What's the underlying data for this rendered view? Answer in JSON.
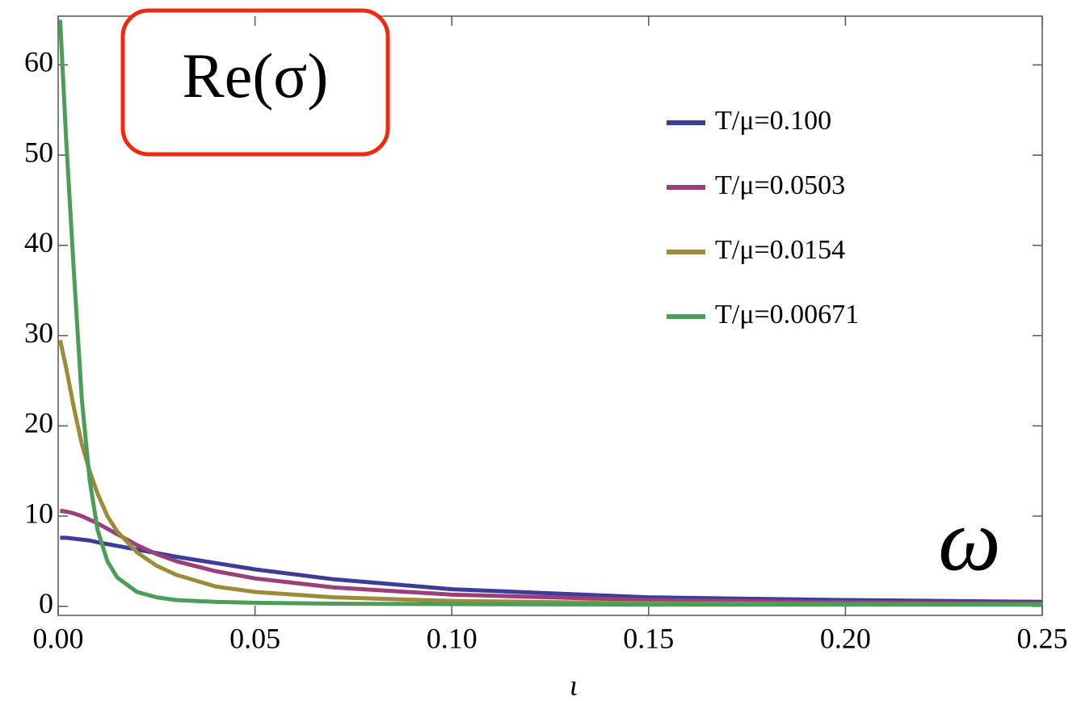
{
  "chart_data": {
    "type": "line",
    "title": "Re(σ)",
    "annotation": "ω",
    "xlabel": "ι",
    "x": [
      0.0005,
      0.002,
      0.004,
      0.006,
      0.008,
      0.01,
      0.0125,
      0.015,
      0.02,
      0.025,
      0.03,
      0.04,
      0.05,
      0.07,
      0.1,
      0.15,
      0.2,
      0.25
    ],
    "series": [
      {
        "name": "T/μ=0.100",
        "color": "#3d3d99",
        "values": [
          7.6,
          7.6,
          7.5,
          7.4,
          7.3,
          7.1,
          6.9,
          6.7,
          6.3,
          5.9,
          5.5,
          4.8,
          4.1,
          3.0,
          1.9,
          1.0,
          0.7,
          0.5
        ]
      },
      {
        "name": "T/μ=0.0503",
        "color": "#9b3f7a",
        "values": [
          10.6,
          10.5,
          10.3,
          10.0,
          9.6,
          9.2,
          8.6,
          8.0,
          6.8,
          5.8,
          5.0,
          3.9,
          3.1,
          2.1,
          1.3,
          0.7,
          0.45,
          0.35
        ]
      },
      {
        "name": "T/μ=0.0154",
        "color": "#9c8c3a",
        "values": [
          29.5,
          26.5,
          22,
          18,
          15,
          12.5,
          10,
          8.3,
          6,
          4.5,
          3.5,
          2.2,
          1.6,
          1.0,
          0.6,
          0.35,
          0.25,
          0.2
        ]
      },
      {
        "name": "T/μ=0.00671",
        "color": "#4a9e5a",
        "values": [
          65,
          52,
          37,
          23,
          14,
          8.5,
          5,
          3.2,
          1.6,
          1.0,
          0.7,
          0.5,
          0.4,
          0.3,
          0.25,
          0.2,
          0.2,
          0.2
        ]
      }
    ],
    "xlim": [
      0,
      0.25
    ],
    "xticks": [
      {
        "value": 0,
        "label": "0.00"
      },
      0.05,
      {
        "value": 0.1,
        "label": "0.10"
      },
      0.15,
      {
        "value": 0.2,
        "label": "0.20"
      },
      0.25
    ],
    "ylim": [
      -1,
      65.4
    ],
    "yticks": [
      0,
      10,
      20,
      30,
      40,
      50,
      60
    ],
    "legend": "upper right"
  }
}
